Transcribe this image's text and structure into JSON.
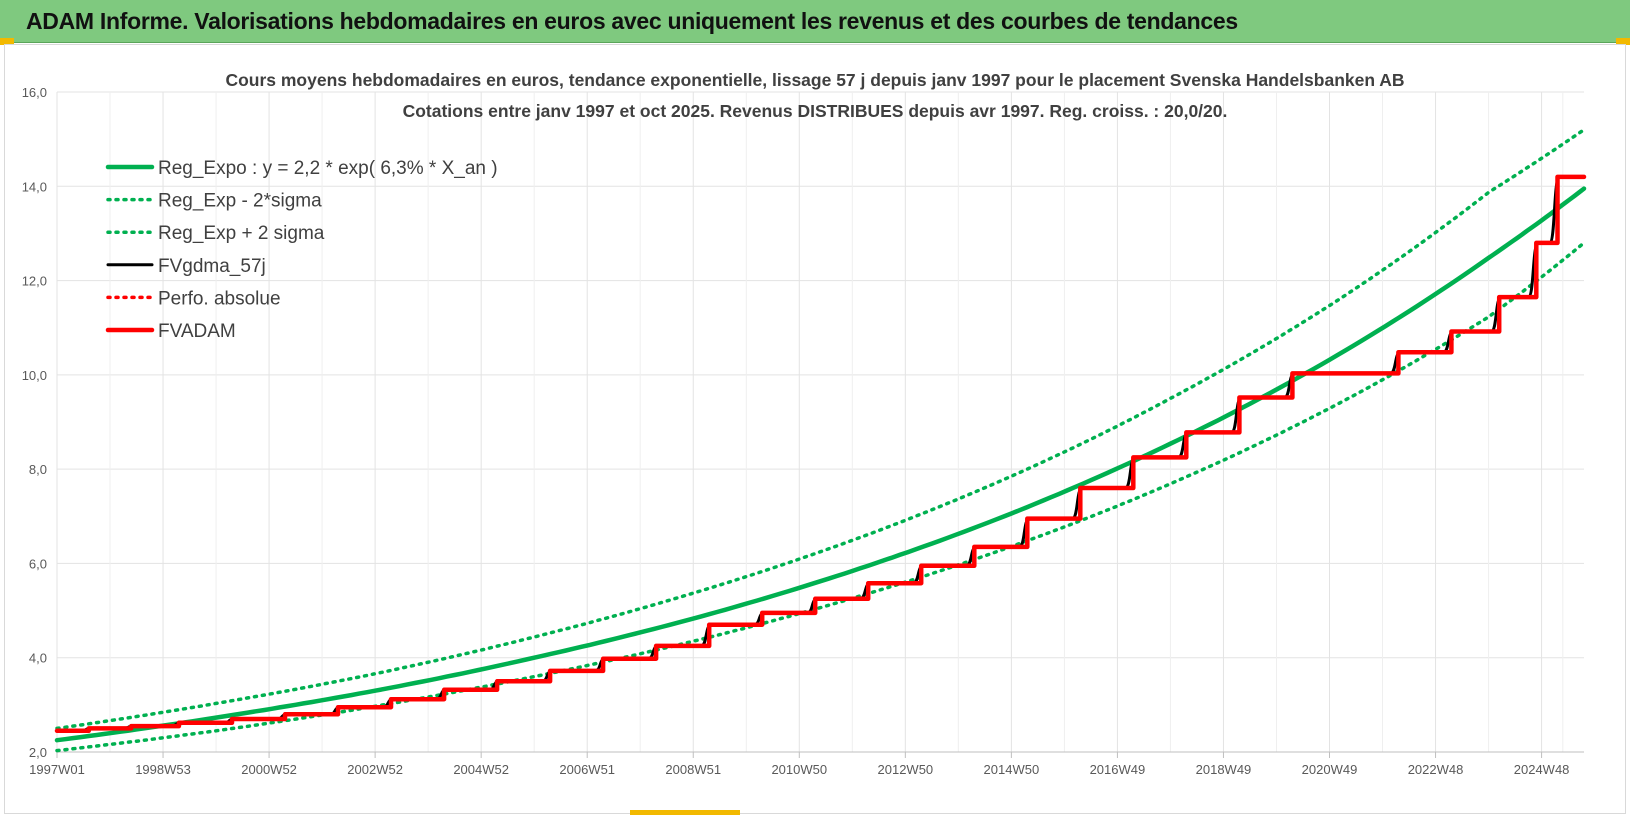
{
  "header": {
    "title": "ADAM Informe. Valorisations hebdomadaires en euros avec uniquement les revenus et des courbes de tendances"
  },
  "colors": {
    "header_bg": "#7fc97f",
    "trend": "#00b050",
    "fv_adam": "#ff0000",
    "fvgdma": "#000000",
    "grid": "#e6e6e6"
  },
  "chart_data": {
    "type": "line",
    "title": "Cours moyens hebdomadaires en euros, tendance exponentielle, lissage 57 j depuis janv 1997 pour le placement Svenska Handelsbanken AB",
    "subtitle": "Cotations entre janv 1997 et oct 2025. Revenus DISTRIBUES depuis avr 1997. Reg. croiss. : 20,0/20.",
    "xlabel": "",
    "ylabel": "",
    "ylim": [
      2.0,
      16.0
    ],
    "yticks": [
      "2,0",
      "4,0",
      "6,0",
      "8,0",
      "10,0",
      "12,0",
      "14,0",
      "16,0"
    ],
    "xlim": [
      1997.0,
      2025.8
    ],
    "xticks": [
      {
        "label": "1997W01",
        "x": 1997.0
      },
      {
        "label": "1998W53",
        "x": 1999.0
      },
      {
        "label": "2000W52",
        "x": 2001.0
      },
      {
        "label": "2002W52",
        "x": 2003.0
      },
      {
        "label": "2004W52",
        "x": 2005.0
      },
      {
        "label": "2006W51",
        "x": 2007.0
      },
      {
        "label": "2008W51",
        "x": 2009.0
      },
      {
        "label": "2010W50",
        "x": 2011.0
      },
      {
        "label": "2012W50",
        "x": 2013.0
      },
      {
        "label": "2014W50",
        "x": 2015.0
      },
      {
        "label": "2016W49",
        "x": 2017.0
      },
      {
        "label": "2018W49",
        "x": 2019.0
      },
      {
        "label": "2020W49",
        "x": 2021.0
      },
      {
        "label": "2022W48",
        "x": 2023.0
      },
      {
        "label": "2024W48",
        "x": 2025.0
      }
    ],
    "legend_position": "top-left",
    "series": [
      {
        "name": "Reg_Expo : y = 2,2 * exp( 6,3% *  X_an )",
        "style": "solid-thick",
        "color": "#00b050",
        "x": [
          1997.0,
          2000.0,
          2003.0,
          2006.0,
          2009.0,
          2012.0,
          2015.0,
          2018.0,
          2021.0,
          2024.0,
          2025.8
        ],
        "y": [
          2.25,
          2.73,
          3.3,
          4.0,
          4.83,
          5.84,
          7.06,
          8.54,
          10.32,
          12.48,
          13.95
        ]
      },
      {
        "name": "Reg_Exp - 2*sigma",
        "style": "dotted",
        "color": "#00b050",
        "x": [
          1997.0,
          2000.0,
          2003.0,
          2006.0,
          2009.0,
          2012.0,
          2015.0,
          2018.0,
          2021.0,
          2024.0,
          2025.8
        ],
        "y": [
          2.03,
          2.45,
          2.97,
          3.6,
          4.35,
          5.26,
          6.36,
          7.69,
          9.29,
          11.23,
          12.8
        ]
      },
      {
        "name": "Reg_Exp + 2 sigma",
        "style": "dotted",
        "color": "#00b050",
        "x": [
          1997.0,
          2000.0,
          2003.0,
          2006.0,
          2009.0,
          2012.0,
          2015.0,
          2018.0,
          2021.0,
          2024.0,
          2025.8
        ],
        "y": [
          2.5,
          3.03,
          3.66,
          4.44,
          5.37,
          6.49,
          7.85,
          9.5,
          11.47,
          13.87,
          15.2
        ]
      },
      {
        "name": "FVgdma_57j",
        "style": "solid",
        "color": "#000000",
        "steps": [
          [
            1997.0,
            2.45
          ],
          [
            1997.6,
            2.5
          ],
          [
            1998.4,
            2.55
          ],
          [
            1999.3,
            2.62
          ],
          [
            2000.3,
            2.7
          ],
          [
            2001.3,
            2.8
          ],
          [
            2002.3,
            2.95
          ],
          [
            2003.3,
            3.12
          ],
          [
            2004.3,
            3.32
          ],
          [
            2005.3,
            3.5
          ],
          [
            2006.3,
            3.72
          ],
          [
            2007.3,
            3.98
          ],
          [
            2008.3,
            4.25
          ],
          [
            2009.3,
            4.7
          ],
          [
            2010.3,
            4.95
          ],
          [
            2011.3,
            5.25
          ],
          [
            2012.3,
            5.58
          ],
          [
            2013.3,
            5.95
          ],
          [
            2014.3,
            6.35
          ],
          [
            2015.3,
            6.95
          ],
          [
            2016.3,
            7.6
          ],
          [
            2017.3,
            8.25
          ],
          [
            2018.3,
            8.78
          ],
          [
            2019.3,
            9.52
          ],
          [
            2020.3,
            10.03
          ],
          [
            2021.3,
            10.03
          ],
          [
            2022.3,
            10.48
          ],
          [
            2023.3,
            10.92
          ],
          [
            2024.2,
            11.65
          ],
          [
            2024.9,
            12.8
          ],
          [
            2025.3,
            14.2
          ]
        ]
      },
      {
        "name": "Perfo. absolue",
        "style": "dotted",
        "color": "#ff0000",
        "steps": []
      },
      {
        "name": "FVADAM",
        "style": "solid-thick",
        "color": "#ff0000",
        "steps": [
          [
            1997.0,
            2.45
          ],
          [
            1997.6,
            2.5
          ],
          [
            1998.4,
            2.55
          ],
          [
            1999.3,
            2.62
          ],
          [
            2000.3,
            2.7
          ],
          [
            2001.3,
            2.8
          ],
          [
            2002.3,
            2.95
          ],
          [
            2003.3,
            3.12
          ],
          [
            2004.3,
            3.32
          ],
          [
            2005.3,
            3.5
          ],
          [
            2006.3,
            3.72
          ],
          [
            2007.3,
            3.98
          ],
          [
            2008.3,
            4.25
          ],
          [
            2009.3,
            4.7
          ],
          [
            2010.3,
            4.95
          ],
          [
            2011.3,
            5.25
          ],
          [
            2012.3,
            5.58
          ],
          [
            2013.3,
            5.95
          ],
          [
            2014.3,
            6.35
          ],
          [
            2015.3,
            6.95
          ],
          [
            2016.3,
            7.6
          ],
          [
            2017.3,
            8.25
          ],
          [
            2018.3,
            8.78
          ],
          [
            2019.3,
            9.52
          ],
          [
            2020.3,
            10.03
          ],
          [
            2021.3,
            10.03
          ],
          [
            2022.3,
            10.48
          ],
          [
            2023.3,
            10.92
          ],
          [
            2024.2,
            11.65
          ],
          [
            2024.9,
            12.8
          ],
          [
            2025.3,
            14.2
          ]
        ]
      }
    ]
  }
}
